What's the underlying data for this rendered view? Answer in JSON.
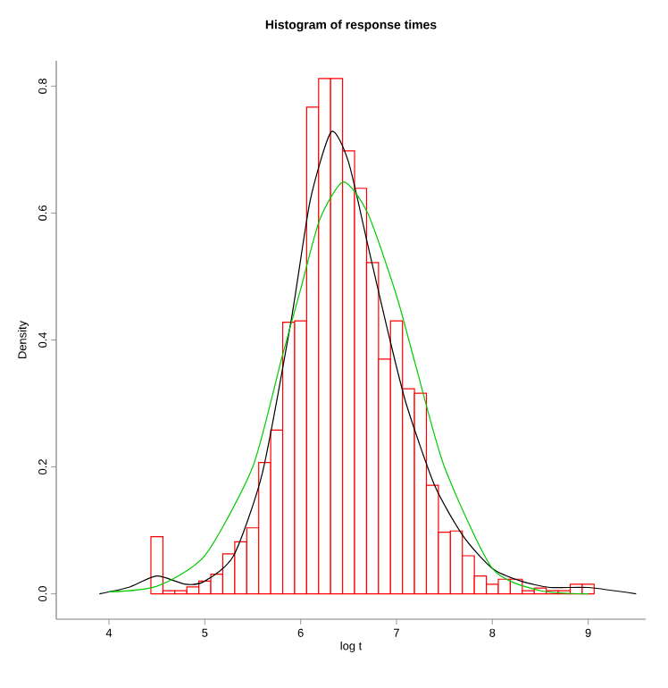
{
  "chart_data": {
    "type": "histogram",
    "title": "Histogram of response times",
    "xlabel": "log t",
    "ylabel": "Density",
    "bins": [
      4.4375,
      4.5625,
      4.6875,
      4.8125,
      4.9375,
      5.0625,
      5.1875,
      5.3125,
      5.4375,
      5.5625,
      5.6875,
      5.8125,
      5.9375,
      6.0625,
      6.1875,
      6.3125,
      6.4375,
      6.5625,
      6.6875,
      6.8125,
      6.9375,
      7.0625,
      7.1875,
      7.3125,
      7.4375,
      7.5625,
      7.6875,
      7.8125,
      7.9375,
      8.0625,
      8.1875,
      8.3125,
      8.4375,
      8.5625,
      8.6875,
      8.8125,
      8.9375,
      9.0625
    ],
    "values": [
      0.09,
      0.005,
      0.005,
      0.011,
      0.02,
      0.031,
      0.063,
      0.082,
      0.104,
      0.207,
      0.258,
      0.428,
      0.43,
      0.767,
      0.812,
      0.812,
      0.698,
      0.639,
      0.522,
      0.37,
      0.43,
      0.323,
      0.316,
      0.171,
      0.097,
      0.099,
      0.06,
      0.028,
      0.015,
      0.023,
      0.023,
      0.005,
      0.009,
      0.005,
      0.005,
      0.015,
      0.015
    ],
    "color": "#ff0000",
    "series": [
      {
        "type": "line",
        "color": "#000000",
        "x": [
          3.9,
          4.2,
          4.5,
          4.8,
          5.0,
          5.3,
          5.6,
          5.9,
          6.1,
          6.32,
          6.5,
          6.7,
          6.9,
          7.1,
          7.4,
          7.7,
          8.0,
          8.3,
          8.6,
          9.0,
          9.5
        ],
        "values": [
          0,
          0.01,
          0.028,
          0.015,
          0.02,
          0.06,
          0.19,
          0.43,
          0.62,
          0.728,
          0.68,
          0.55,
          0.42,
          0.3,
          0.17,
          0.09,
          0.04,
          0.02,
          0.01,
          0.01,
          0
        ]
      },
      {
        "type": "line",
        "color": "#00cc00",
        "x": [
          4.0,
          4.5,
          5.0,
          5.5,
          5.8,
          6.0,
          6.2,
          6.445,
          6.7,
          7.0,
          7.2,
          7.5,
          8.0,
          8.5,
          9.0
        ],
        "values": [
          0.003,
          0.012,
          0.06,
          0.2,
          0.37,
          0.48,
          0.59,
          0.649,
          0.6,
          0.47,
          0.36,
          0.2,
          0.04,
          0.005,
          0
        ]
      }
    ],
    "xlim": [
      3.45,
      9.6
    ],
    "ylim": [
      -0.04,
      0.84
    ],
    "xticks": [
      4,
      5,
      6,
      7,
      8,
      9
    ],
    "yticks": [
      {
        "value": 0,
        "label": "0.0"
      },
      {
        "value": 0.2,
        "label": "0.2"
      },
      {
        "value": 0.4,
        "label": "0.4"
      },
      {
        "value": 0.6,
        "label": "0.6"
      },
      {
        "value": 0.8,
        "label": "0.8"
      }
    ],
    "grid": false,
    "legend": false,
    "marker": "none",
    "line_style": "solid"
  }
}
